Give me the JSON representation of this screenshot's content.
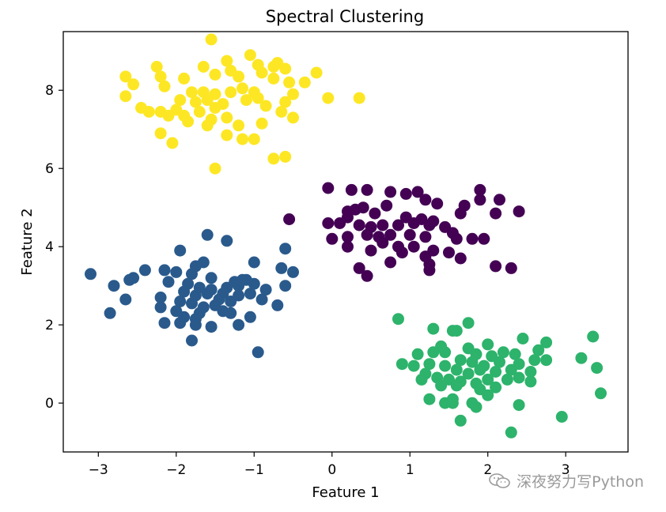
{
  "chart_data": {
    "type": "scatter",
    "title": "Spectral Clustering",
    "xlabel": "Feature 1",
    "ylabel": "Feature 2",
    "xlim": [
      -3.45,
      3.8
    ],
    "ylim": [
      -1.25,
      9.5
    ],
    "xticks": [
      -3,
      -2,
      -1,
      0,
      1,
      2,
      3
    ],
    "xtick_labels": [
      "−3",
      "−2",
      "−1",
      "0",
      "1",
      "2",
      "3"
    ],
    "yticks": [
      0,
      2,
      4,
      6,
      8
    ],
    "ytick_labels": [
      "0",
      "2",
      "4",
      "6",
      "8"
    ],
    "grid": false,
    "series": [
      {
        "color": "#440154",
        "points": [
          [
            -0.05,
            5.5
          ],
          [
            0.25,
            5.45
          ],
          [
            0.45,
            5.45
          ],
          [
            0.75,
            5.4
          ],
          [
            0.95,
            5.35
          ],
          [
            1.1,
            5.4
          ],
          [
            1.2,
            5.2
          ],
          [
            1.35,
            5.1
          ],
          [
            1.9,
            5.45
          ],
          [
            1.9,
            5.2
          ],
          [
            2.15,
            5.2
          ],
          [
            1.7,
            5.05
          ],
          [
            0.7,
            5.05
          ],
          [
            0.4,
            5.0
          ],
          [
            0.3,
            4.95
          ],
          [
            0.2,
            4.9
          ],
          [
            0.55,
            4.85
          ],
          [
            1.65,
            4.85
          ],
          [
            2.1,
            4.85
          ],
          [
            2.4,
            4.9
          ],
          [
            0.95,
            4.75
          ],
          [
            1.15,
            4.7
          ],
          [
            1.3,
            4.65
          ],
          [
            1.45,
            4.5
          ],
          [
            -0.05,
            4.6
          ],
          [
            0.1,
            4.6
          ],
          [
            0.35,
            4.55
          ],
          [
            0.5,
            4.5
          ],
          [
            0.65,
            4.55
          ],
          [
            0.85,
            4.55
          ],
          [
            1.05,
            4.6
          ],
          [
            1.25,
            4.55
          ],
          [
            1.55,
            4.35
          ],
          [
            1.6,
            4.2
          ],
          [
            1.8,
            4.2
          ],
          [
            1.95,
            4.2
          ],
          [
            0.45,
            4.3
          ],
          [
            0.6,
            4.25
          ],
          [
            0.75,
            4.3
          ],
          [
            1.0,
            4.3
          ],
          [
            1.2,
            4.25
          ],
          [
            -0.0,
            4.2
          ],
          [
            0.2,
            4.25
          ],
          [
            0.65,
            4.1
          ],
          [
            0.85,
            4.0
          ],
          [
            1.05,
            4.0
          ],
          [
            1.3,
            3.9
          ],
          [
            1.5,
            3.85
          ],
          [
            0.2,
            4.0
          ],
          [
            0.5,
            3.9
          ],
          [
            0.9,
            3.85
          ],
          [
            1.2,
            3.75
          ],
          [
            1.65,
            3.7
          ],
          [
            0.75,
            3.6
          ],
          [
            1.25,
            3.55
          ],
          [
            0.35,
            3.45
          ],
          [
            0.45,
            3.25
          ],
          [
            1.25,
            3.4
          ],
          [
            2.1,
            3.5
          ],
          [
            2.3,
            3.45
          ],
          [
            -0.55,
            4.7
          ],
          [
            0.2,
            4.75
          ]
        ]
      },
      {
        "color": "#2a5a8c",
        "points": [
          [
            -1.6,
            4.3
          ],
          [
            -1.35,
            4.15
          ],
          [
            -1.95,
            3.9
          ],
          [
            -1.65,
            3.6
          ],
          [
            -1.75,
            3.5
          ],
          [
            -1.0,
            3.6
          ],
          [
            -0.6,
            3.95
          ],
          [
            -0.65,
            3.45
          ],
          [
            -0.5,
            3.35
          ],
          [
            -3.1,
            3.3
          ],
          [
            -2.55,
            3.2
          ],
          [
            -2.6,
            3.15
          ],
          [
            -2.4,
            3.4
          ],
          [
            -2.15,
            3.4
          ],
          [
            -2.0,
            3.35
          ],
          [
            -1.8,
            3.3
          ],
          [
            -1.55,
            3.2
          ],
          [
            -1.25,
            3.1
          ],
          [
            -1.1,
            3.15
          ],
          [
            -1.2,
            3.0
          ],
          [
            -2.8,
            3.0
          ],
          [
            -2.1,
            3.1
          ],
          [
            -1.85,
            3.05
          ],
          [
            -1.7,
            2.95
          ],
          [
            -1.55,
            2.9
          ],
          [
            -1.35,
            2.95
          ],
          [
            -1.0,
            3.05
          ],
          [
            -0.85,
            2.9
          ],
          [
            -0.6,
            3.0
          ],
          [
            -1.9,
            2.85
          ],
          [
            -1.75,
            2.75
          ],
          [
            -1.6,
            2.8
          ],
          [
            -1.45,
            2.65
          ],
          [
            -1.2,
            2.75
          ],
          [
            -1.05,
            2.8
          ],
          [
            -2.2,
            2.7
          ],
          [
            -1.95,
            2.6
          ],
          [
            -1.8,
            2.55
          ],
          [
            -1.65,
            2.45
          ],
          [
            -1.5,
            2.5
          ],
          [
            -1.3,
            2.6
          ],
          [
            -0.9,
            2.65
          ],
          [
            -2.65,
            2.65
          ],
          [
            -2.2,
            2.45
          ],
          [
            -2.0,
            2.35
          ],
          [
            -1.9,
            2.2
          ],
          [
            -1.7,
            2.3
          ],
          [
            -1.4,
            2.35
          ],
          [
            -1.3,
            2.3
          ],
          [
            -1.05,
            2.2
          ],
          [
            -0.7,
            2.5
          ],
          [
            -2.85,
            2.3
          ],
          [
            -2.15,
            2.05
          ],
          [
            -1.95,
            2.05
          ],
          [
            -1.75,
            2.15
          ],
          [
            -1.55,
            1.95
          ],
          [
            -1.2,
            2.0
          ],
          [
            -1.8,
            1.6
          ],
          [
            -0.95,
            1.3
          ],
          [
            -1.75,
            2.0
          ],
          [
            -1.4,
            2.8
          ],
          [
            -1.15,
            3.15
          ]
        ]
      },
      {
        "color": "#fde725",
        "points": [
          [
            -1.55,
            9.3
          ],
          [
            -1.35,
            8.75
          ],
          [
            -1.05,
            8.9
          ],
          [
            -0.95,
            8.65
          ],
          [
            -0.75,
            8.6
          ],
          [
            -0.6,
            8.55
          ],
          [
            -0.7,
            8.7
          ],
          [
            -2.65,
            8.35
          ],
          [
            -2.25,
            8.6
          ],
          [
            -1.65,
            8.6
          ],
          [
            -1.3,
            8.5
          ],
          [
            -1.5,
            8.4
          ],
          [
            -1.2,
            8.35
          ],
          [
            -0.9,
            8.45
          ],
          [
            -0.2,
            8.45
          ],
          [
            -2.2,
            8.35
          ],
          [
            -1.9,
            8.3
          ],
          [
            -0.75,
            8.3
          ],
          [
            -0.55,
            8.2
          ],
          [
            -2.55,
            8.15
          ],
          [
            -2.15,
            8.1
          ],
          [
            -1.8,
            7.95
          ],
          [
            -1.65,
            7.95
          ],
          [
            -1.5,
            7.9
          ],
          [
            -1.3,
            7.95
          ],
          [
            -1.15,
            8.05
          ],
          [
            -1.0,
            7.95
          ],
          [
            -0.95,
            7.8
          ],
          [
            -0.5,
            7.9
          ],
          [
            -0.35,
            8.2
          ],
          [
            -2.65,
            7.85
          ],
          [
            -1.95,
            7.75
          ],
          [
            -1.75,
            7.7
          ],
          [
            -1.6,
            7.75
          ],
          [
            -1.4,
            7.65
          ],
          [
            -1.1,
            7.75
          ],
          [
            -0.85,
            7.6
          ],
          [
            -0.6,
            7.7
          ],
          [
            -0.05,
            7.8
          ],
          [
            0.35,
            7.8
          ],
          [
            -2.45,
            7.55
          ],
          [
            -2.2,
            7.45
          ],
          [
            -2.0,
            7.5
          ],
          [
            -1.9,
            7.35
          ],
          [
            -1.7,
            7.45
          ],
          [
            -1.5,
            7.55
          ],
          [
            -1.35,
            7.3
          ],
          [
            -0.65,
            7.45
          ],
          [
            -0.5,
            7.3
          ],
          [
            -2.35,
            7.45
          ],
          [
            -2.1,
            7.35
          ],
          [
            -1.55,
            7.25
          ],
          [
            -1.2,
            7.1
          ],
          [
            -0.9,
            7.15
          ],
          [
            -1.85,
            7.2
          ],
          [
            -1.6,
            7.1
          ],
          [
            -2.2,
            6.9
          ],
          [
            -1.35,
            6.85
          ],
          [
            -1.15,
            6.75
          ],
          [
            -1.0,
            6.75
          ],
          [
            -2.05,
            6.65
          ],
          [
            -0.75,
            6.25
          ],
          [
            -0.6,
            6.3
          ],
          [
            -1.5,
            6.0
          ]
        ]
      },
      {
        "color": "#2db36b",
        "points": [
          [
            0.85,
            2.15
          ],
          [
            1.75,
            2.05
          ],
          [
            1.3,
            1.9
          ],
          [
            1.6,
            1.85
          ],
          [
            1.55,
            1.85
          ],
          [
            3.35,
            1.7
          ],
          [
            2.45,
            1.65
          ],
          [
            2.75,
            1.55
          ],
          [
            2.0,
            1.5
          ],
          [
            1.4,
            1.45
          ],
          [
            1.75,
            1.4
          ],
          [
            1.3,
            1.3
          ],
          [
            1.1,
            1.25
          ],
          [
            1.45,
            1.3
          ],
          [
            1.85,
            1.25
          ],
          [
            2.05,
            1.2
          ],
          [
            2.2,
            1.3
          ],
          [
            2.35,
            1.25
          ],
          [
            2.65,
            1.35
          ],
          [
            3.2,
            1.15
          ],
          [
            1.65,
            1.1
          ],
          [
            1.8,
            1.05
          ],
          [
            1.95,
            0.95
          ],
          [
            2.15,
            1.05
          ],
          [
            2.4,
            1.0
          ],
          [
            2.6,
            1.1
          ],
          [
            2.75,
            1.1
          ],
          [
            0.9,
            1.0
          ],
          [
            1.05,
            0.95
          ],
          [
            1.25,
            1.0
          ],
          [
            1.45,
            0.95
          ],
          [
            1.6,
            0.85
          ],
          [
            1.75,
            0.75
          ],
          [
            1.9,
            0.85
          ],
          [
            2.1,
            0.8
          ],
          [
            2.3,
            0.85
          ],
          [
            2.55,
            0.8
          ],
          [
            3.4,
            0.9
          ],
          [
            1.2,
            0.75
          ],
          [
            1.35,
            0.65
          ],
          [
            1.5,
            0.6
          ],
          [
            1.65,
            0.55
          ],
          [
            1.85,
            0.5
          ],
          [
            2.0,
            0.6
          ],
          [
            2.25,
            0.6
          ],
          [
            2.4,
            0.65
          ],
          [
            2.55,
            0.55
          ],
          [
            1.15,
            0.6
          ],
          [
            1.4,
            0.45
          ],
          [
            1.6,
            0.45
          ],
          [
            1.9,
            0.35
          ],
          [
            2.0,
            0.2
          ],
          [
            3.45,
            0.25
          ],
          [
            1.25,
            0.1
          ],
          [
            1.45,
            0.0
          ],
          [
            1.55,
            0.0
          ],
          [
            1.8,
            0.0
          ],
          [
            1.85,
            -0.1
          ],
          [
            2.4,
            -0.05
          ],
          [
            2.95,
            -0.35
          ],
          [
            1.65,
            -0.45
          ],
          [
            2.3,
            -0.75
          ],
          [
            1.55,
            0.1
          ],
          [
            2.1,
            0.4
          ]
        ]
      }
    ]
  },
  "watermark": {
    "icon": "wechat-icon",
    "text": "深夜努力写Python"
  }
}
